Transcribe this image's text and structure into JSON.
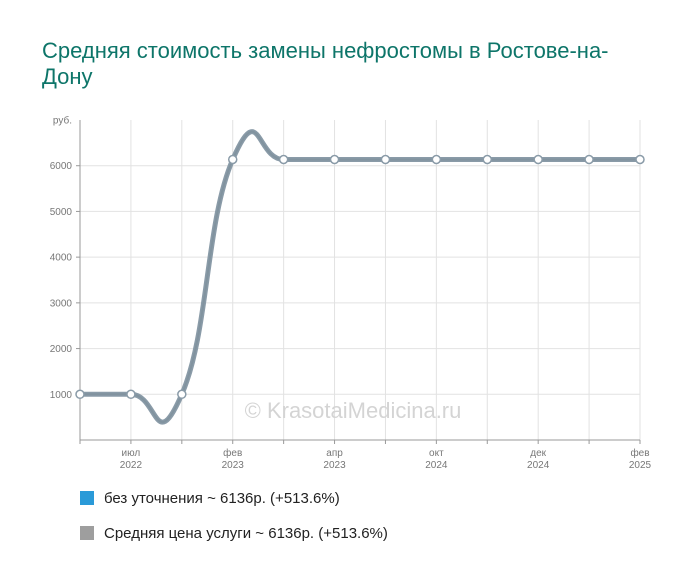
{
  "chart_data": {
    "type": "line",
    "title": "Средняя стоимость замены нефростомы в Ростове-на-Дону",
    "y_unit_label": "руб.",
    "ylim": [
      0,
      7000
    ],
    "y_ticks": [
      1000,
      2000,
      3000,
      4000,
      5000,
      6000
    ],
    "x_tick_labels": [
      {
        "month": "июл",
        "year": "2022"
      },
      {
        "month": "фев",
        "year": "2023"
      },
      {
        "month": "апр",
        "year": "2023"
      },
      {
        "month": "окт",
        "year": "2024"
      },
      {
        "month": "дек",
        "year": "2024"
      },
      {
        "month": "фев",
        "year": "2025"
      }
    ],
    "points": [
      1000,
      1000,
      1000,
      6136,
      6136,
      6136,
      6136,
      6136,
      6136,
      6136,
      6136,
      6136
    ],
    "series": [
      {
        "name": "без уточнения",
        "summary": "без уточнения ~ 6136р. (+513.6%)",
        "color": "#2a9ad8"
      },
      {
        "name": "Средняя цена услуги",
        "summary": "Средняя цена услуги ~ 6136р. (+513.6%)",
        "color": "#9e9e9e"
      }
    ],
    "line_color": "#8a9ba8",
    "watermark": "© KrasotaiMedicina.ru",
    "grid": true
  }
}
